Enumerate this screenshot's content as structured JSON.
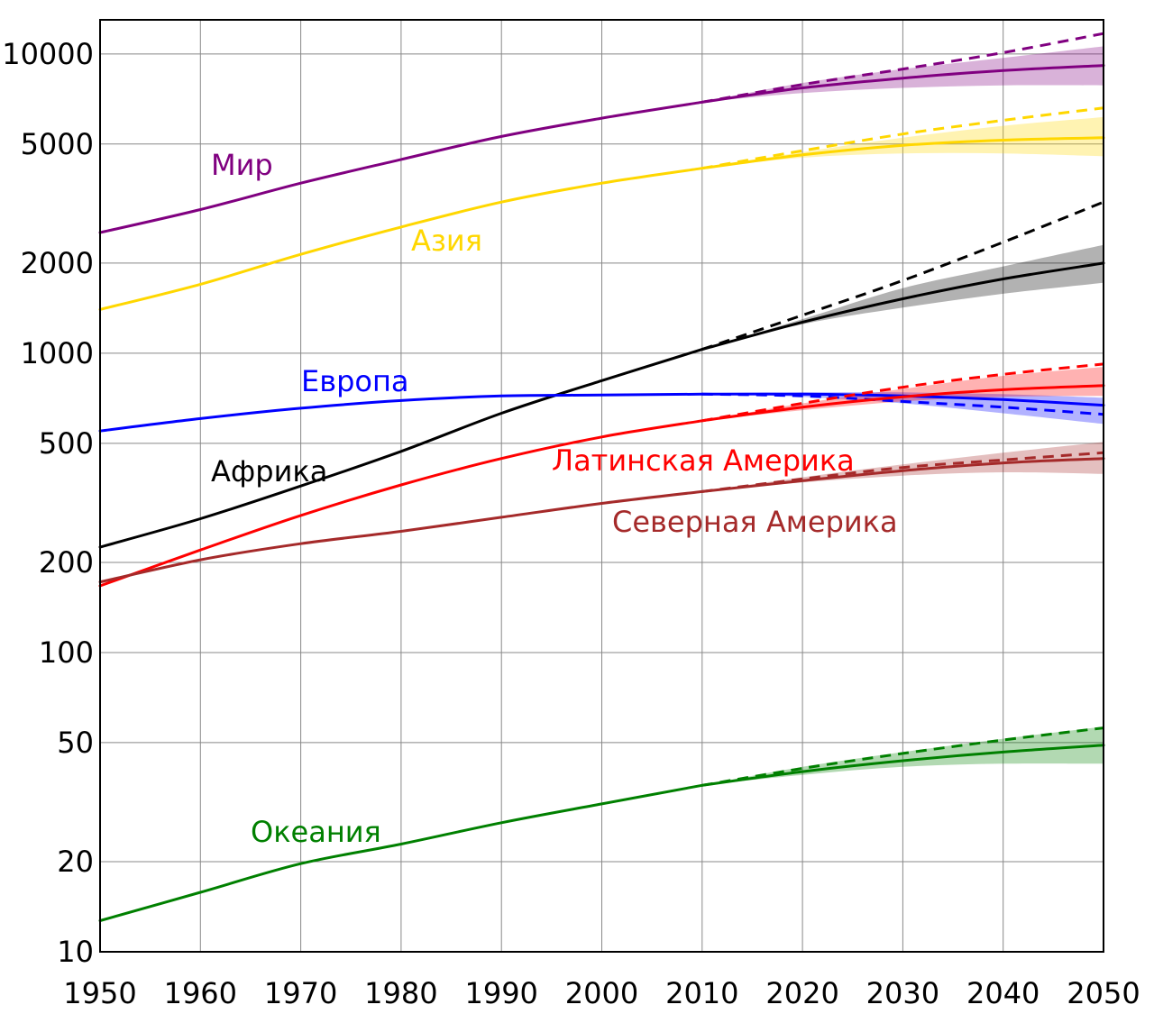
{
  "chart_data": {
    "type": "line",
    "title": "",
    "xlabel": "",
    "ylabel": "",
    "xlim": [
      1950,
      2050
    ],
    "ylim": [
      10,
      13000
    ],
    "y_scale": "log",
    "grid": true,
    "legend": "inline labels",
    "x_ticks": [
      1950,
      1960,
      1970,
      1980,
      1990,
      2000,
      2010,
      2020,
      2030,
      2040,
      2050
    ],
    "x_tick_labels": [
      "1950",
      "1960",
      "1970",
      "1980",
      "1990",
      "2000",
      "2010",
      "2020",
      "2030",
      "2040",
      "2050"
    ],
    "y_ticks": [
      10,
      20,
      50,
      100,
      200,
      500,
      1000,
      2000,
      5000,
      10000
    ],
    "y_tick_labels": [
      "10",
      "20",
      "50",
      "100",
      "200",
      "500",
      "1000",
      "2000",
      "5000",
      "10000"
    ],
    "series": [
      {
        "name": "Мир",
        "color": "#800080",
        "historical": {
          "x": [
            1950,
            1960,
            1970,
            1980,
            1990,
            2000,
            2010
          ],
          "y": [
            2530,
            3020,
            3700,
            4440,
            5300,
            6100,
            6900
          ]
        },
        "projection": {
          "x": [
            2010,
            2020,
            2030,
            2040,
            2050
          ],
          "y": [
            6900,
            7700,
            8300,
            8800,
            9150
          ]
        },
        "band_low": [
          6900,
          7400,
          7700,
          7850,
          7850
        ],
        "band_high": [
          6900,
          8000,
          8900,
          9700,
          10600
        ],
        "upper_dashed": {
          "x": [
            2010,
            2020,
            2030,
            2040,
            2050
          ],
          "y": [
            6900,
            7900,
            8900,
            10100,
            11700
          ]
        }
      },
      {
        "name": "Азия",
        "color": "#FFD700",
        "historical": {
          "x": [
            1950,
            1960,
            1970,
            1980,
            1990,
            2000,
            2010
          ],
          "y": [
            1400,
            1700,
            2140,
            2640,
            3200,
            3700,
            4150
          ]
        },
        "projection": {
          "x": [
            2010,
            2020,
            2030,
            2040,
            2050
          ],
          "y": [
            4150,
            4600,
            4950,
            5150,
            5250
          ]
        },
        "band_low": [
          4150,
          4500,
          4650,
          4650,
          4550
        ],
        "band_high": [
          4150,
          4700,
          5250,
          5750,
          6150
        ],
        "upper_dashed": {
          "x": [
            2010,
            2020,
            2030,
            2040,
            2050
          ],
          "y": [
            4150,
            4750,
            5400,
            6000,
            6600
          ]
        }
      },
      {
        "name": "Африка",
        "color": "#000000",
        "historical": {
          "x": [
            1950,
            1960,
            1970,
            1980,
            1990,
            2000,
            2010
          ],
          "y": [
            225,
            280,
            360,
            470,
            630,
            810,
            1030
          ]
        },
        "projection": {
          "x": [
            2010,
            2020,
            2030,
            2040,
            2050
          ],
          "y": [
            1030,
            1270,
            1520,
            1770,
            2000
          ]
        },
        "band_low": [
          1030,
          1250,
          1420,
          1580,
          1720
        ],
        "band_high": [
          1030,
          1300,
          1650,
          1950,
          2300
        ],
        "upper_dashed": {
          "x": [
            2010,
            2020,
            2030,
            2040,
            2050
          ],
          "y": [
            1030,
            1340,
            1750,
            2350,
            3200
          ]
        }
      },
      {
        "name": "Европа",
        "color": "#0000FF",
        "historical": {
          "x": [
            1950,
            1960,
            1970,
            1980,
            1990,
            2000,
            2010
          ],
          "y": [
            550,
            605,
            655,
            695,
            720,
            725,
            730
          ]
        },
        "projection": {
          "x": [
            2010,
            2020,
            2030,
            2040,
            2050
          ],
          "y": [
            730,
            730,
            720,
            700,
            670
          ]
        },
        "band_low": [
          730,
          715,
          680,
          630,
          580
        ],
        "band_high": [
          730,
          740,
          740,
          730,
          710
        ],
        "upper_dashed": {
          "x": [
            2010,
            2020,
            2030,
            2040,
            2050
          ],
          "y": [
            730,
            720,
            690,
            660,
            625
          ]
        }
      },
      {
        "name": "Латинская Америка",
        "color": "#FF0000",
        "historical": {
          "x": [
            1950,
            1960,
            1970,
            1980,
            1990,
            2000,
            2010
          ],
          "y": [
            167,
            220,
            287,
            363,
            445,
            525,
            595
          ]
        },
        "projection": {
          "x": [
            2010,
            2020,
            2030,
            2040,
            2050
          ],
          "y": [
            595,
            660,
            715,
            755,
            780
          ]
        },
        "band_low": [
          595,
          645,
          690,
          715,
          720
        ],
        "band_high": [
          595,
          680,
          760,
          840,
          900
        ],
        "upper_dashed": {
          "x": [
            2010,
            2020,
            2030,
            2040,
            2050
          ],
          "y": [
            595,
            680,
            770,
            850,
            920
          ]
        }
      },
      {
        "name": "Северная Америка",
        "color": "#A52A2A",
        "historical": {
          "x": [
            1950,
            1960,
            1970,
            1980,
            1990,
            2000,
            2010
          ],
          "y": [
            172,
            204,
            231,
            254,
            283,
            315,
            345
          ]
        },
        "projection": {
          "x": [
            2010,
            2020,
            2030,
            2040,
            2050
          ],
          "y": [
            345,
            375,
            405,
            430,
            445
          ]
        },
        "band_low": [
          345,
          370,
          390,
          400,
          395
        ],
        "band_high": [
          345,
          385,
          425,
          465,
          505
        ],
        "upper_dashed": {
          "x": [
            2010,
            2020,
            2030,
            2040,
            2050
          ],
          "y": [
            345,
            380,
            415,
            440,
            465
          ]
        }
      },
      {
        "name": "Океания",
        "color": "#008000",
        "historical": {
          "x": [
            1950,
            1960,
            1970,
            1980,
            1990,
            2000,
            2010
          ],
          "y": [
            12.7,
            15.8,
            19.7,
            22.9,
            27.0,
            31.2,
            36.0
          ]
        },
        "projection": {
          "x": [
            2010,
            2020,
            2030,
            2040,
            2050
          ],
          "y": [
            36.0,
            40.0,
            43.5,
            46.5,
            49.0
          ]
        },
        "band_low": [
          36.0,
          39.0,
          41.5,
          42.5,
          42.5
        ],
        "band_high": [
          36.0,
          41.5,
          46.5,
          51.5,
          56.5
        ],
        "upper_dashed": {
          "x": [
            2010,
            2020,
            2030,
            2040,
            2050
          ],
          "y": [
            36.0,
            41.0,
            46.0,
            51.0,
            56.0
          ]
        }
      }
    ]
  }
}
